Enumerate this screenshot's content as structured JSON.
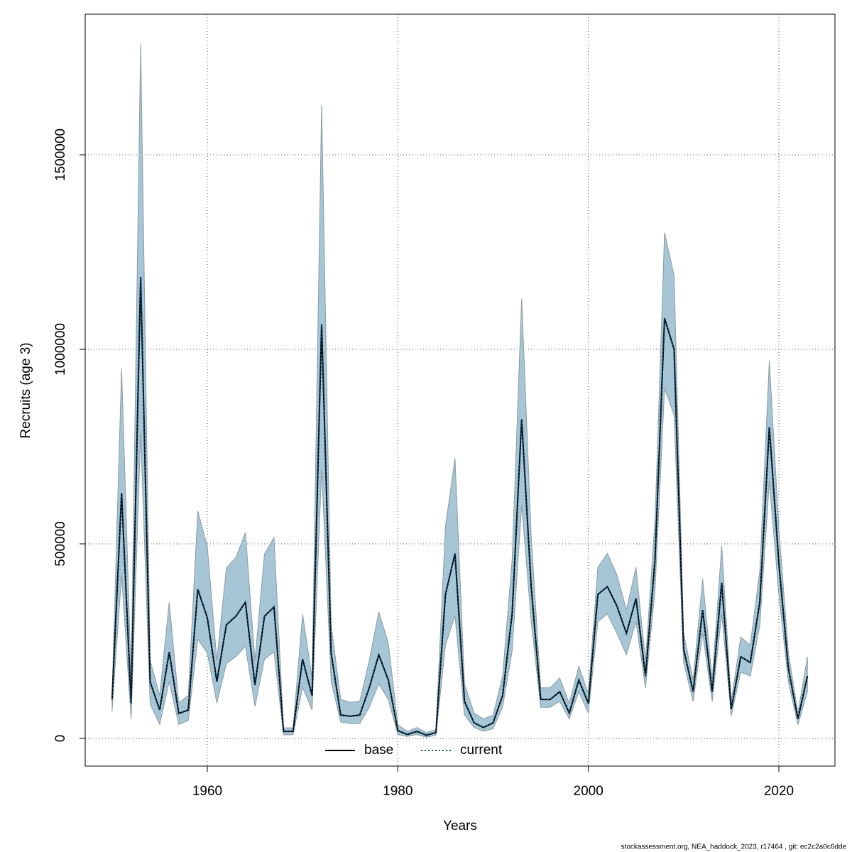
{
  "chart_data": {
    "type": "line",
    "xlabel": "Years",
    "ylabel": "Recruits (age 3)",
    "footnote": "stockassessment.org, NEA_haddock_2023, r17464 , git: ec2c2a0c6dde",
    "x": [
      1950,
      1951,
      1952,
      1953,
      1954,
      1955,
      1956,
      1957,
      1958,
      1959,
      1960,
      1961,
      1962,
      1963,
      1964,
      1965,
      1966,
      1967,
      1968,
      1969,
      1970,
      1971,
      1972,
      1973,
      1974,
      1975,
      1976,
      1977,
      1978,
      1979,
      1980,
      1981,
      1982,
      1983,
      1984,
      1985,
      1986,
      1987,
      1988,
      1989,
      1990,
      1991,
      1992,
      1993,
      1994,
      1995,
      1996,
      1997,
      1998,
      1999,
      2000,
      2001,
      2002,
      2003,
      2004,
      2005,
      2006,
      2007,
      2008,
      2009,
      2010,
      2011,
      2012,
      2013,
      2014,
      2015,
      2016,
      2017,
      2018,
      2019,
      2020,
      2021,
      2022,
      2023
    ],
    "series": [
      {
        "name": "base",
        "color": "#000000",
        "dash": "solid",
        "values": [
          100000,
          630000,
          90000,
          1186000,
          145000,
          73000,
          222000,
          64000,
          73000,
          383000,
          310000,
          146000,
          292000,
          314000,
          350000,
          137000,
          314000,
          338000,
          18000,
          18000,
          204000,
          110000,
          1064000,
          219000,
          60000,
          57000,
          60000,
          130000,
          215000,
          150000,
          20000,
          10000,
          18000,
          8000,
          15000,
          370000,
          475000,
          95000,
          40000,
          28000,
          40000,
          110000,
          320000,
          820000,
          390000,
          100000,
          100000,
          120000,
          65000,
          150000,
          90000,
          370000,
          390000,
          340000,
          270000,
          360000,
          160000,
          460000,
          1080000,
          1000000,
          230000,
          120000,
          330000,
          120000,
          400000,
          75000,
          210000,
          195000,
          350000,
          800000,
          450000,
          180000,
          50000,
          160000
        ]
      },
      {
        "name": "current",
        "color": "#0e4a6e",
        "dash": "dotted",
        "values": [
          100000,
          630000,
          90000,
          1186000,
          145000,
          73000,
          222000,
          64000,
          73000,
          383000,
          310000,
          146000,
          292000,
          314000,
          350000,
          137000,
          314000,
          338000,
          18000,
          18000,
          204000,
          110000,
          1064000,
          219000,
          60000,
          57000,
          60000,
          130000,
          215000,
          150000,
          20000,
          10000,
          18000,
          8000,
          15000,
          370000,
          475000,
          95000,
          40000,
          28000,
          40000,
          110000,
          320000,
          820000,
          390000,
          100000,
          100000,
          120000,
          65000,
          150000,
          90000,
          370000,
          390000,
          340000,
          270000,
          360000,
          160000,
          460000,
          1080000,
          1000000,
          230000,
          120000,
          330000,
          120000,
          400000,
          75000,
          210000,
          195000,
          350000,
          800000,
          450000,
          180000,
          50000,
          160000
        ]
      }
    ],
    "band": {
      "color": "#a6c6d6",
      "low": [
        70000,
        420000,
        50000,
        785000,
        88000,
        36000,
        146000,
        36000,
        46000,
        255000,
        219000,
        91000,
        192000,
        210000,
        237000,
        82000,
        204000,
        222000,
        9000,
        9000,
        131000,
        73000,
        693000,
        146000,
        42000,
        38000,
        38000,
        80000,
        140000,
        100000,
        10000,
        5000,
        10000,
        3000,
        8000,
        240000,
        315000,
        60000,
        28000,
        18000,
        25000,
        80000,
        225000,
        600000,
        300000,
        80000,
        80000,
        95000,
        50000,
        120000,
        65000,
        300000,
        320000,
        270000,
        215000,
        300000,
        130000,
        380000,
        900000,
        830000,
        195000,
        95000,
        270000,
        95000,
        320000,
        58000,
        170000,
        160000,
        290000,
        660000,
        370000,
        145000,
        35000,
        120000
      ],
      "high": [
        110000,
        950000,
        160000,
        1785000,
        200000,
        110000,
        350000,
        91000,
        110000,
        584000,
        493000,
        200000,
        438000,
        465000,
        529000,
        200000,
        474000,
        516000,
        27000,
        27000,
        319000,
        155000,
        1628000,
        292000,
        100000,
        93000,
        95000,
        200000,
        325000,
        245000,
        35000,
        18000,
        28000,
        15000,
        22000,
        545000,
        720000,
        140000,
        65000,
        50000,
        60000,
        160000,
        460000,
        1130000,
        520000,
        130000,
        130000,
        155000,
        90000,
        185000,
        115000,
        440000,
        475000,
        420000,
        330000,
        440000,
        200000,
        560000,
        1300000,
        1190000,
        270000,
        150000,
        410000,
        150000,
        495000,
        95000,
        260000,
        240000,
        430000,
        970000,
        540000,
        220000,
        65000,
        210000
      ]
    },
    "xlim": [
      1947.18,
      2025.89
    ],
    "ylim": [
      -71200,
      1861300
    ],
    "xticks": [
      1960,
      1980,
      2000,
      2020
    ],
    "yticks": [
      0,
      500000,
      1000000,
      1500000
    ],
    "grid": true,
    "legend": "bottom"
  }
}
